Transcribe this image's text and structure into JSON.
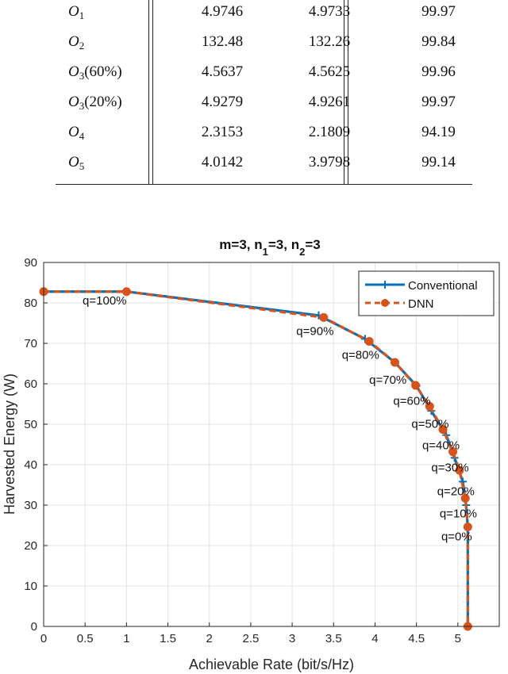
{
  "table": {
    "rows": [
      {
        "label": "O",
        "sub": "1",
        "suffix": "",
        "conv": "4.9746",
        "dnn": "4.9733",
        "acc": "99.97"
      },
      {
        "label": "O",
        "sub": "2",
        "suffix": "",
        "conv": "132.48",
        "dnn": "132.26",
        "acc": "99.84"
      },
      {
        "label": "O",
        "sub": "3",
        "suffix": "(60%)",
        "conv": "4.5637",
        "dnn": "4.5625",
        "acc": "99.96"
      },
      {
        "label": "O",
        "sub": "3",
        "suffix": "(20%)",
        "conv": "4.9279",
        "dnn": "4.9261",
        "acc": "99.97"
      },
      {
        "label": "O",
        "sub": "4",
        "suffix": "",
        "conv": "2.3153",
        "dnn": "2.1809",
        "acc": "94.19"
      },
      {
        "label": "O",
        "sub": "5",
        "suffix": "",
        "conv": "4.0142",
        "dnn": "3.9798",
        "acc": "99.14"
      }
    ]
  },
  "chart_data": {
    "type": "line",
    "title": {
      "main": "m=3, n",
      "s1": "1",
      "mid": "=3, n",
      "s2": "2",
      "end": "=3"
    },
    "xlabel": "Achievable Rate (bit/s/Hz)",
    "ylabel": "Harvested Energy (W)",
    "xlim": [
      0,
      5.5
    ],
    "ylim": [
      0,
      90
    ],
    "xticks": [
      0,
      0.5,
      1,
      1.5,
      2,
      2.5,
      3,
      3.5,
      4,
      4.5,
      5
    ],
    "xtick_labels": [
      "0",
      "0.5",
      "1",
      "1.5",
      "2",
      "2.5",
      "3",
      "3.5",
      "4",
      "4.5",
      "5"
    ],
    "yticks": [
      0,
      10,
      20,
      30,
      40,
      50,
      60,
      70,
      80,
      90
    ],
    "ytick_labels": [
      "0",
      "10",
      "20",
      "30",
      "40",
      "50",
      "60",
      "70",
      "80",
      "90"
    ],
    "grid": true,
    "legend_position": "top-right",
    "series": [
      {
        "name": "Conventional",
        "color": "#0072BD",
        "style": "solid",
        "marker": "plus",
        "x": [
          0,
          1.0,
          3.32,
          3.88,
          4.24,
          4.5,
          4.68,
          4.86,
          4.96,
          5.06,
          5.1,
          5.12,
          5.12
        ],
        "y": [
          82.8,
          82.8,
          76.9,
          71.1,
          65.3,
          59.5,
          53.3,
          47.3,
          41.7,
          35.8,
          30.0,
          24.6,
          0
        ]
      },
      {
        "name": "DNN",
        "color": "#D95319",
        "style": "dashed",
        "marker": "circle",
        "x": [
          0,
          1.0,
          3.38,
          3.93,
          4.24,
          4.49,
          4.66,
          4.82,
          4.94,
          5.02,
          5.09,
          5.12,
          5.12
        ],
        "y": [
          82.8,
          82.8,
          76.4,
          70.5,
          65.3,
          59.6,
          54.4,
          48.7,
          43.2,
          38.6,
          31.7,
          24.6,
          0
        ]
      }
    ],
    "annotations": [
      {
        "text": "q=100%",
        "x": 0.47,
        "y": 80.6
      },
      {
        "text": "q=90%",
        "x": 3.05,
        "y": 73.0
      },
      {
        "text": "q=80%",
        "x": 3.6,
        "y": 67.2
      },
      {
        "text": "q=70%",
        "x": 3.93,
        "y": 61.0
      },
      {
        "text": "q=60%",
        "x": 4.22,
        "y": 55.8
      },
      {
        "text": "q=50%",
        "x": 4.44,
        "y": 50.1
      },
      {
        "text": "q=40%",
        "x": 4.57,
        "y": 44.8
      },
      {
        "text": "q=30%",
        "x": 4.68,
        "y": 39.3
      },
      {
        "text": "q=20%",
        "x": 4.75,
        "y": 33.4
      },
      {
        "text": "q=10%",
        "x": 4.78,
        "y": 27.9
      },
      {
        "text": "q=0%",
        "x": 4.8,
        "y": 22.3
      }
    ]
  }
}
